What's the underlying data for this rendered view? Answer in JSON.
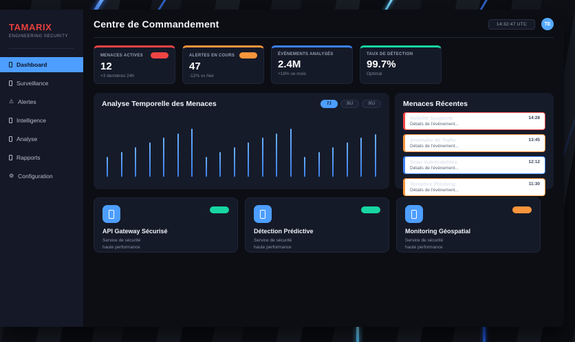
{
  "brand": {
    "name": "TAMARIX",
    "tagline": "ENGINEERING SECURITY"
  },
  "sidebar": {
    "items": [
      {
        "label": "Dashboard",
        "icon": "dashboard-icon",
        "active": true
      },
      {
        "label": "Surveillance",
        "icon": "surveillance-icon",
        "active": false
      },
      {
        "label": "Alertes",
        "icon": "alert-triangle-icon",
        "glyph": "⚠",
        "active": false
      },
      {
        "label": "Intelligence",
        "icon": "intelligence-icon",
        "active": false
      },
      {
        "label": "Analyse",
        "icon": "analyse-icon",
        "active": false
      },
      {
        "label": "Rapports",
        "icon": "reports-icon",
        "active": false
      },
      {
        "label": "Configuration",
        "icon": "gear-icon",
        "glyph": "⚙",
        "active": false
      }
    ]
  },
  "header": {
    "title": "Centre de Commandement",
    "clock": "14:32:47 UTC",
    "avatar_initials": "TE"
  },
  "stat_cards": [
    {
      "label": "MENACES ACTIVES",
      "value": "12",
      "sub": "+3 dernières 24h",
      "accent": "#ef4444",
      "has_badge": true
    },
    {
      "label": "ALERTES EN COURS",
      "value": "47",
      "sub": "-12% vs hier",
      "accent": "#f9953b",
      "has_badge": true
    },
    {
      "label": "ÉVÉNEMENTS ANALYSÉS",
      "value": "2.4M",
      "sub": "+18% ce mois",
      "accent": "#3b82f6",
      "has_badge": false
    },
    {
      "label": "TAUX DE DÉTECTION",
      "value": "99.7%",
      "sub": "Optimal",
      "accent": "#17d6a1",
      "has_badge": false
    }
  ],
  "chart_panel": {
    "title": "Analyse Temporelle des Menaces",
    "range_buttons": [
      {
        "label": "7J",
        "active": true
      },
      {
        "label": "30J",
        "active": false
      },
      {
        "label": "90J",
        "active": false
      }
    ]
  },
  "chart_data": {
    "type": "bar",
    "title": "Analyse Temporelle des Menaces",
    "values": [
      42,
      52,
      62,
      71,
      81,
      90,
      100,
      42,
      52,
      62,
      71,
      81,
      90,
      100,
      42,
      52,
      62,
      71,
      81,
      89
    ],
    "x": "time (unlabeled ticks)",
    "ylabel": "",
    "ylim": [
      0,
      100
    ],
    "grid": false,
    "bar_color": "#4d9eff",
    "legend": "none"
  },
  "threats_panel": {
    "title": "Menaces Récentes",
    "items": [
      {
        "title": "Activité Suspecte",
        "time": "14:28",
        "detail": "Détails de l'événement...",
        "border": "#ef4444",
        "edge": "#ef4444"
      },
      {
        "title": "Anomalie de Trafic",
        "time": "13:45",
        "detail": "Détails de l'événement...",
        "border": "#f9953b",
        "edge": "#f9953b"
      },
      {
        "title": "Scan Vulnérabilités",
        "time": "12:12",
        "detail": "Détails de l'événement...",
        "border": "#3b82f6",
        "edge": "#3b82f6"
      },
      {
        "title": "Tentative Phishing",
        "time": "11:30",
        "detail": "Détails de l'événement...",
        "border": "#f9953b",
        "edge": "#ef4444"
      }
    ]
  },
  "service_cards": [
    {
      "title": "API Gateway Sécurisé",
      "desc1": "Service de sécurité",
      "desc2": "haute performance",
      "badge_color": "#17d6a1",
      "icon": "service-icon"
    },
    {
      "title": "Détection Prédictive",
      "desc1": "Service de sécurité",
      "desc2": "haute performance",
      "badge_color": "#17d6a1",
      "icon": "service-icon"
    },
    {
      "title": "Monitoring Géospatial",
      "desc1": "Service de sécurité",
      "desc2": "haute performance",
      "badge_color": "#f9953b",
      "icon": "service-icon"
    }
  ],
  "colors": {
    "primary_blue": "#4d9eff",
    "brand_red": "#e8403c",
    "danger": "#ef4444",
    "warning": "#f9953b",
    "success": "#17d6a1",
    "info": "#3b82f6"
  }
}
